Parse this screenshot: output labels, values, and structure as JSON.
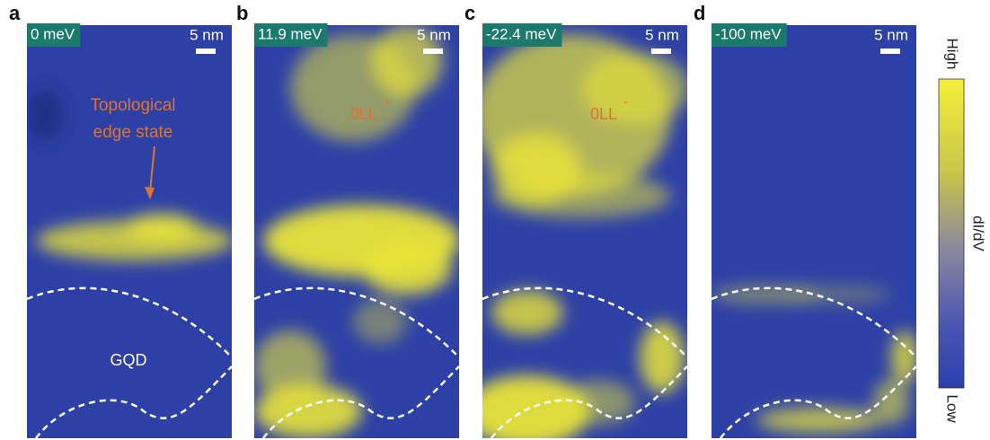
{
  "panels": [
    {
      "letter": "a",
      "energy": "0 meV",
      "scale": "5 nm"
    },
    {
      "letter": "b",
      "energy": "11.9 meV",
      "scale": "5 nm"
    },
    {
      "letter": "c",
      "energy": "-22.4 meV",
      "scale": "5 nm"
    },
    {
      "letter": "d",
      "energy": "-100 meV",
      "scale": "5 nm"
    }
  ],
  "annotations": {
    "edge_state": [
      "Topological",
      "edge state"
    ],
    "gqd": "GQD",
    "ll_plus": {
      "label": "0LL",
      "superscript": "+"
    },
    "ll_minus": {
      "label": "0LL",
      "superscript": "-"
    }
  },
  "colorbar": {
    "high": "High",
    "low": "Low",
    "label": "dI/dV"
  }
}
